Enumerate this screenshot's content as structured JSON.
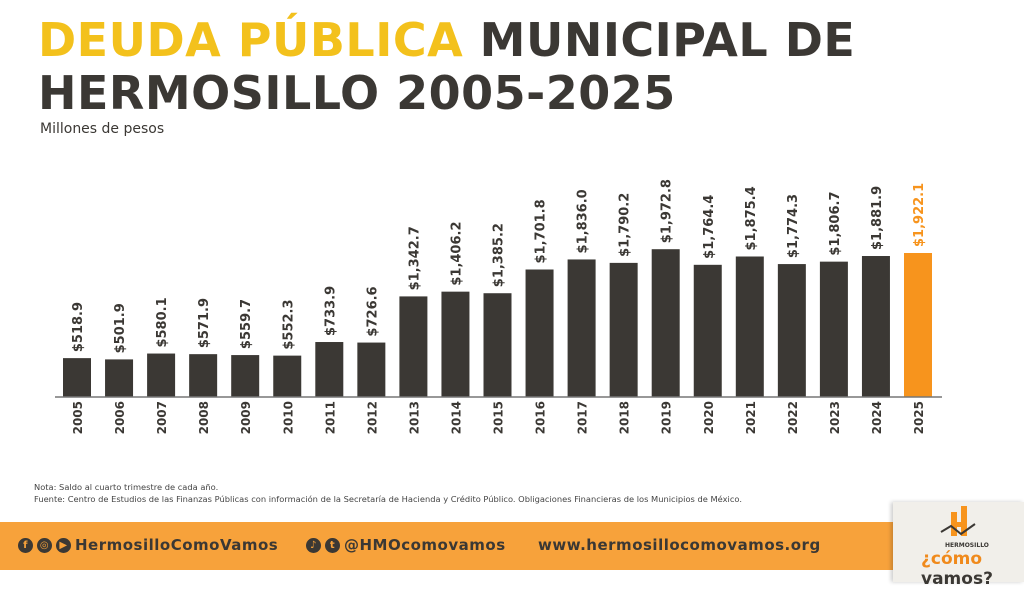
{
  "title": {
    "highlight": "DEUDA PÚBLICA",
    "rest_line1": " MUNICIPAL DE",
    "line2": "HERMOSILLO 2005-2025"
  },
  "subtitle": "Millones de pesos",
  "chart_data": {
    "type": "bar",
    "title": "DEUDA PÚBLICA MUNICIPAL DE HERMOSILLO 2005-2025",
    "ylabel": "Millones de pesos",
    "xlabel": "",
    "ylim": [
      0,
      2000
    ],
    "grid": false,
    "categories": [
      "2005",
      "2006",
      "2007",
      "2008",
      "2009",
      "2010",
      "2011",
      "2012",
      "2013",
      "2014",
      "2015",
      "2016",
      "2017",
      "2018",
      "2019",
      "2020",
      "2021",
      "2022",
      "2023",
      "2024",
      "2025"
    ],
    "values": [
      518.9,
      501.9,
      580.1,
      571.9,
      559.7,
      552.3,
      733.9,
      726.6,
      1342.7,
      1406.2,
      1385.2,
      1701.8,
      1836.0,
      1790.2,
      1972.8,
      1764.4,
      1875.4,
      1774.3,
      1806.7,
      1881.9,
      1922.1
    ],
    "labels": [
      "$518.9",
      "$501.9",
      "$580.1",
      "$571.9",
      "$559.7",
      "$552.3",
      "$733.9",
      "$726.6",
      "$1,342.7",
      "$1,406.2",
      "$1,385.2",
      "$1,701.8",
      "$1,836.0",
      "$1,790.2",
      "$1,972.8",
      "$1,764.4",
      "$1,875.4",
      "$1,774.3",
      "$1,806.7",
      "$1,881.9",
      "$1,922.1"
    ],
    "colors": {
      "bar": "#3b3834",
      "highlight": "#f7941d"
    },
    "highlight_index": 20
  },
  "note": "Nota: Saldo al cuarto trimestre de cada año.",
  "source": "Fuente: Centro de Estudios de las Finanzas Públicas con información de la Secretaría de Hacienda y Crédito Público. Obligaciones Financieras de los Municipios de México.",
  "footer": {
    "facebook_handle": "HermosilloComoVamos",
    "twitter_handle": "@HMOcomovamos",
    "website": "www.hermosillocomovamos.org"
  },
  "logo": {
    "small": "HERMOSILLO",
    "big_a": "¿cómo ",
    "big_b": "vamos?"
  }
}
